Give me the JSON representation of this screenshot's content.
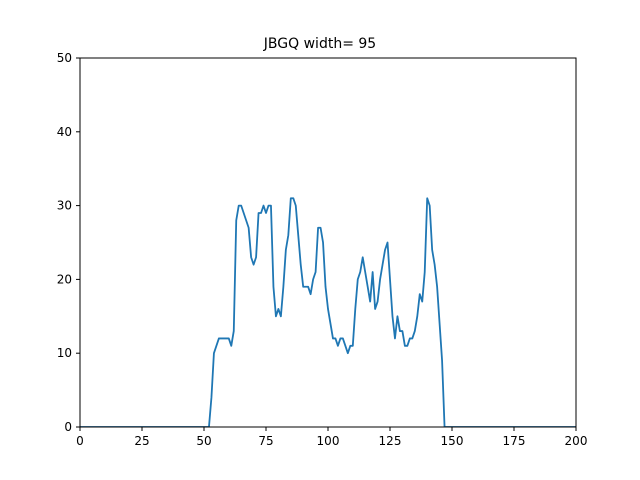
{
  "chart_data": {
    "type": "line",
    "title": "JBGQ width= 95",
    "xlabel": "",
    "ylabel": "",
    "xlim": [
      0,
      200
    ],
    "ylim": [
      0,
      50
    ],
    "xticks": [
      0,
      25,
      50,
      75,
      100,
      125,
      150,
      175,
      200
    ],
    "yticks": [
      0,
      10,
      20,
      30,
      40,
      50
    ],
    "xtick_labels": [
      "0",
      "25",
      "50",
      "75",
      "100",
      "125",
      "150",
      "175",
      "200"
    ],
    "ytick_labels": [
      "0",
      "10",
      "20",
      "30",
      "40",
      "50"
    ],
    "grid": false,
    "legend": "none",
    "series": [
      {
        "color": "#1f77b4",
        "x": [
          0,
          52,
          53,
          54,
          55,
          56,
          57,
          58,
          59,
          60,
          61,
          62,
          63,
          64,
          65,
          66,
          67,
          68,
          69,
          70,
          71,
          72,
          73,
          74,
          75,
          76,
          77,
          78,
          79,
          80,
          81,
          82,
          83,
          84,
          85,
          86,
          87,
          88,
          89,
          90,
          91,
          92,
          93,
          94,
          95,
          96,
          97,
          98,
          99,
          100,
          101,
          102,
          103,
          104,
          105,
          106,
          107,
          108,
          109,
          110,
          111,
          112,
          113,
          114,
          115,
          116,
          117,
          118,
          119,
          120,
          121,
          122,
          123,
          124,
          125,
          126,
          127,
          128,
          129,
          130,
          131,
          132,
          133,
          134,
          135,
          136,
          137,
          138,
          139,
          140,
          141,
          142,
          143,
          144,
          145,
          146,
          147,
          200
        ],
        "y": [
          0,
          0,
          4,
          10,
          11,
          12,
          12,
          12,
          12,
          12,
          11,
          13,
          28,
          30,
          30,
          29,
          28,
          27,
          23,
          22,
          23,
          29,
          29,
          30,
          29,
          30,
          30,
          19,
          15,
          16,
          15,
          19,
          24,
          26,
          31,
          31,
          30,
          26,
          22,
          19,
          19,
          19,
          18,
          20,
          21,
          27,
          27,
          25,
          19,
          16,
          14,
          12,
          12,
          11,
          12,
          12,
          11,
          10,
          11,
          11,
          16,
          20,
          21,
          23,
          21,
          19,
          17,
          21,
          16,
          17,
          20,
          22,
          24,
          25,
          20,
          15,
          12,
          15,
          13,
          13,
          11,
          11,
          12,
          12,
          13,
          15,
          18,
          17,
          21,
          31,
          30,
          24,
          22,
          19,
          14,
          9,
          0,
          0
        ]
      }
    ]
  }
}
